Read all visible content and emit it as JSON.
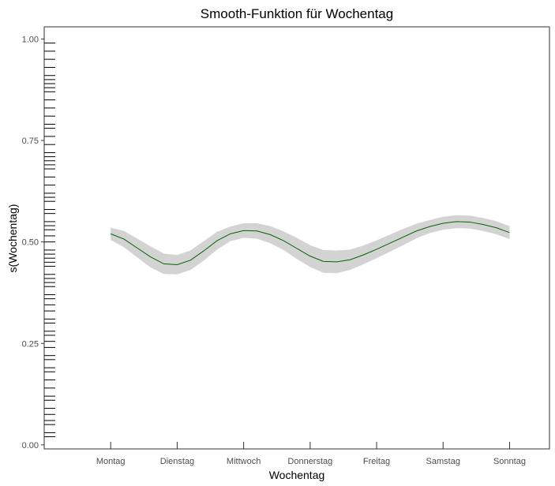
{
  "chart_data": {
    "type": "line",
    "title": "Smooth-Funktion für Wochentag",
    "xlabel": "Wochentag",
    "ylabel": "s(Wochentag)",
    "categories": [
      "Montag",
      "Dienstag",
      "Mittwoch",
      "Donnerstag",
      "Freitag",
      "Samstag",
      "Sonntag"
    ],
    "yticks": [
      "0.00",
      "0.25",
      "0.50",
      "0.75",
      "1.00"
    ],
    "ylim": [
      -0.01,
      1.03
    ],
    "xlim": [
      0.0,
      7.6
    ],
    "grid": false,
    "legend": "none",
    "series": [
      {
        "x": [
          1.0,
          1.2,
          1.4,
          1.6,
          1.8,
          2.0,
          2.2,
          2.4,
          2.6,
          2.8,
          3.0,
          3.2,
          3.4,
          3.6,
          3.8,
          4.0,
          4.2,
          4.4,
          4.6,
          4.8,
          5.0,
          5.2,
          5.4,
          5.6,
          5.8,
          6.0,
          6.2,
          6.4,
          6.6,
          6.8,
          7.0
        ],
        "values": [
          0.52,
          0.507,
          0.485,
          0.463,
          0.446,
          0.444,
          0.455,
          0.478,
          0.503,
          0.52,
          0.528,
          0.527,
          0.518,
          0.503,
          0.484,
          0.465,
          0.452,
          0.451,
          0.456,
          0.468,
          0.482,
          0.497,
          0.512,
          0.527,
          0.538,
          0.546,
          0.55,
          0.549,
          0.543,
          0.535,
          0.523
        ],
        "lower": [
          0.505,
          0.487,
          0.462,
          0.437,
          0.421,
          0.42,
          0.431,
          0.454,
          0.481,
          0.502,
          0.51,
          0.508,
          0.497,
          0.48,
          0.458,
          0.438,
          0.424,
          0.423,
          0.431,
          0.445,
          0.46,
          0.476,
          0.492,
          0.509,
          0.522,
          0.53,
          0.534,
          0.533,
          0.527,
          0.519,
          0.507
        ],
        "upper": [
          0.535,
          0.527,
          0.508,
          0.489,
          0.471,
          0.468,
          0.479,
          0.502,
          0.525,
          0.538,
          0.546,
          0.546,
          0.539,
          0.526,
          0.51,
          0.492,
          0.48,
          0.479,
          0.481,
          0.491,
          0.504,
          0.518,
          0.532,
          0.545,
          0.554,
          0.562,
          0.566,
          0.565,
          0.559,
          0.551,
          0.539
        ],
        "line_color": "#006400",
        "band_color": "#d3d3d3"
      }
    ],
    "rug_y": [
      0.02,
      0.03,
      0.05,
      0.06,
      0.075,
      0.09,
      0.11,
      0.12,
      0.14,
      0.16,
      0.18,
      0.19,
      0.21,
      0.22,
      0.24,
      0.255,
      0.27,
      0.28,
      0.3,
      0.31,
      0.33,
      0.345,
      0.36,
      0.37,
      0.39,
      0.4,
      0.41,
      0.42,
      0.44,
      0.45,
      0.46,
      0.47,
      0.48,
      0.5,
      0.515,
      0.53,
      0.54,
      0.55,
      0.57,
      0.58,
      0.6,
      0.61,
      0.62,
      0.64,
      0.66,
      0.68,
      0.69,
      0.7,
      0.71,
      0.72,
      0.74,
      0.76,
      0.78,
      0.79,
      0.81,
      0.83,
      0.85,
      0.87,
      0.88,
      0.89,
      0.9,
      0.91,
      0.93,
      0.95,
      0.97,
      0.99
    ]
  }
}
